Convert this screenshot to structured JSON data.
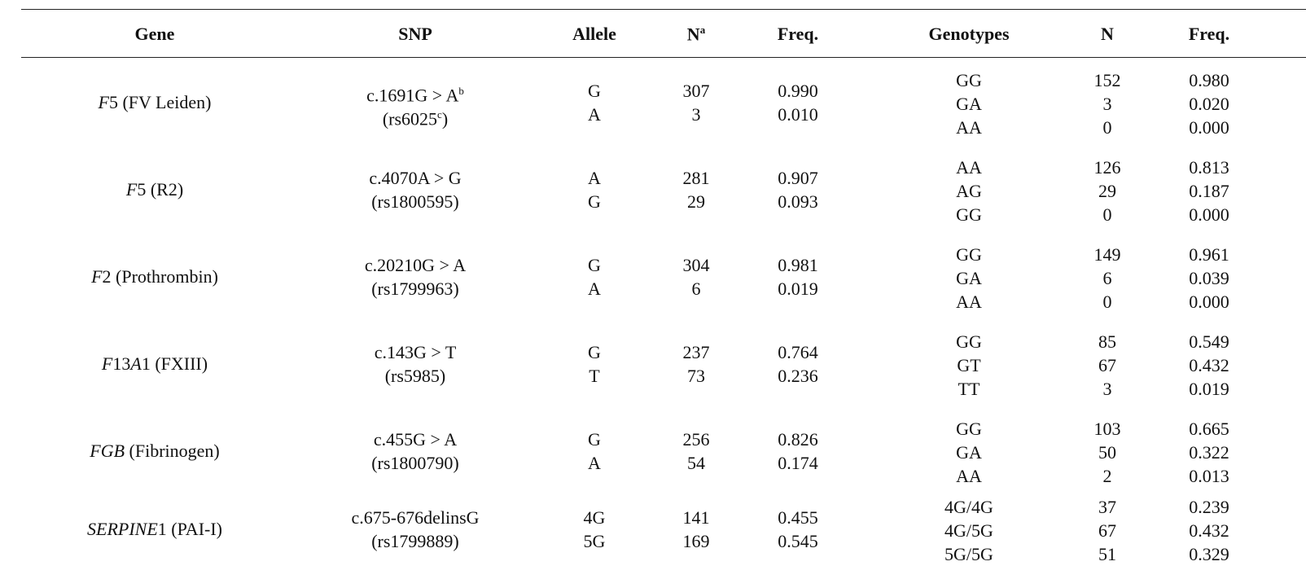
{
  "headers": {
    "gene": "Gene",
    "snp": "SNP",
    "allele": "Allele",
    "n": "N",
    "n_sup": "a",
    "freq": "Freq.",
    "genotypes": "Genotypes",
    "n2": "N",
    "freq2": "Freq."
  },
  "rows": [
    {
      "gene_symbol": "F",
      "gene_num": "5",
      "gene_name": " (FV Leiden)",
      "snp_line1": "c.1691G > A",
      "snp_line1_sup": "b",
      "snp_line2": "(rs6025",
      "snp_line2_sup": "c",
      "snp_line2_end": ")",
      "alleles": [
        "G",
        "A"
      ],
      "allele_n": [
        "307",
        "3"
      ],
      "allele_freq": [
        "0.990",
        "0.010"
      ],
      "genotypes": [
        "GG",
        "GA",
        "AA"
      ],
      "genotype_n": [
        "152",
        "3",
        "0"
      ],
      "genotype_freq": [
        "0.980",
        "0.020",
        "0.000"
      ]
    },
    {
      "gene_symbol": "F",
      "gene_num": "5",
      "gene_name": " (R2)",
      "snp_line1": "c.4070A > G",
      "snp_line2": "(rs1800595)",
      "alleles": [
        "A",
        "G"
      ],
      "allele_n": [
        "281",
        "29"
      ],
      "allele_freq": [
        "0.907",
        "0.093"
      ],
      "genotypes": [
        "AA",
        "AG",
        "GG"
      ],
      "genotype_n": [
        "126",
        "29",
        "0"
      ],
      "genotype_freq": [
        "0.813",
        "0.187",
        "0.000"
      ]
    },
    {
      "gene_symbol": "F",
      "gene_num": "2",
      "gene_name": " (Prothrombin)",
      "snp_line1": "c.20210G > A",
      "snp_line2": "(rs1799963)",
      "alleles": [
        "G",
        "A"
      ],
      "allele_n": [
        "304",
        "6"
      ],
      "allele_freq": [
        "0.981",
        "0.019"
      ],
      "genotypes": [
        "GG",
        "GA",
        "AA"
      ],
      "genotype_n": [
        "149",
        "6",
        "0"
      ],
      "genotype_freq": [
        "0.961",
        "0.039",
        "0.000"
      ]
    },
    {
      "gene_symbol": "F",
      "gene_num": "13",
      "gene_symbol2": "A",
      "gene_num2": "1",
      "gene_name": " (FXIII)",
      "snp_line1": "c.143G > T",
      "snp_line2": "(rs5985)",
      "alleles": [
        "G",
        "T"
      ],
      "allele_n": [
        "237",
        "73"
      ],
      "allele_freq": [
        "0.764",
        "0.236"
      ],
      "genotypes": [
        "GG",
        "GT",
        "TT"
      ],
      "genotype_n": [
        "85",
        "67",
        "3"
      ],
      "genotype_freq": [
        "0.549",
        "0.432",
        "0.019"
      ]
    },
    {
      "gene_symbol": "FGB",
      "gene_name": " (Fibrinogen)",
      "snp_line1": "c.455G > A",
      "snp_line2": "(rs1800790)",
      "alleles": [
        "G",
        "A"
      ],
      "allele_n": [
        "256",
        "54"
      ],
      "allele_freq": [
        "0.826",
        "0.174"
      ],
      "genotypes": [
        "GG",
        "GA",
        "AA"
      ],
      "genotype_n": [
        "103",
        "50",
        "2"
      ],
      "genotype_freq": [
        "0.665",
        "0.322",
        "0.013"
      ]
    },
    {
      "gene_symbol": "SERPINE",
      "gene_num": "1",
      "gene_name": " (PAI-I)",
      "snp_line1": "c.675-676delinsG",
      "snp_line2": "(rs1799889)",
      "alleles": [
        "4G",
        "5G"
      ],
      "allele_n": [
        "141",
        "169"
      ],
      "allele_freq": [
        "0.455",
        "0.545"
      ],
      "genotypes": [
        "4G/4G",
        "4G/5G",
        "5G/5G"
      ],
      "genotype_n": [
        "37",
        "67",
        "51"
      ],
      "genotype_freq": [
        "0.239",
        "0.432",
        "0.329"
      ]
    }
  ]
}
